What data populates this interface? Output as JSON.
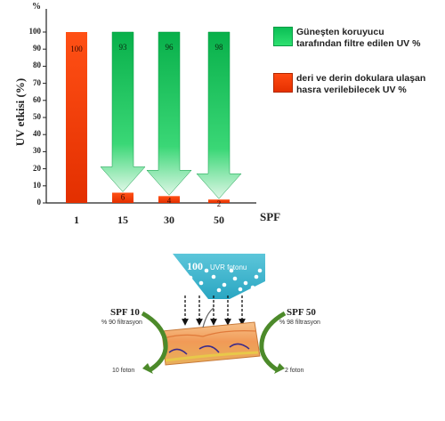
{
  "chart_data": {
    "type": "bar",
    "ylabel": "UV etkisi  (%)",
    "y_unit_top": "%",
    "xlabel": "SPF",
    "ylim": [
      0,
      100
    ],
    "yticks": [
      0,
      10,
      20,
      30,
      40,
      50,
      60,
      70,
      80,
      90,
      100
    ],
    "categories": [
      "1",
      "15",
      "30",
      "50"
    ],
    "series": [
      {
        "name": "Güneşten koruyucu tarafından filtre edilen UV %",
        "color": "#1ccf5e",
        "values": [
          null,
          93,
          96,
          98
        ]
      },
      {
        "name": "deri ve derin dokulara ulaşan hasra verilebilecek UV %",
        "color": "#ff3d0a",
        "values": [
          100,
          6,
          4,
          2
        ]
      }
    ],
    "data_labels": {
      "red": [
        "100",
        "6",
        "4",
        "2"
      ],
      "green": [
        "",
        "93",
        "96",
        "98"
      ]
    }
  },
  "legend": {
    "green": "Güneşten koruyucu tarafından filtre edilen UV %",
    "red": "deri ve derin dokulara ulaşan hasra verilebilecek UV %"
  },
  "diagram": {
    "uvr_count": "100",
    "uvr_label": "UVR fotonu",
    "left_spf": "SPF 10",
    "left_filter": "% 90 filtrasyon",
    "right_spf": "SPF 50",
    "right_filter": "% 98 filtrasyon",
    "left_out": "10 foton",
    "right_out": "2 foton",
    "colors": {
      "uvr_box": "#3fb8cf",
      "arrow": "#4c8a2a",
      "skin": "#f2a25c"
    }
  }
}
